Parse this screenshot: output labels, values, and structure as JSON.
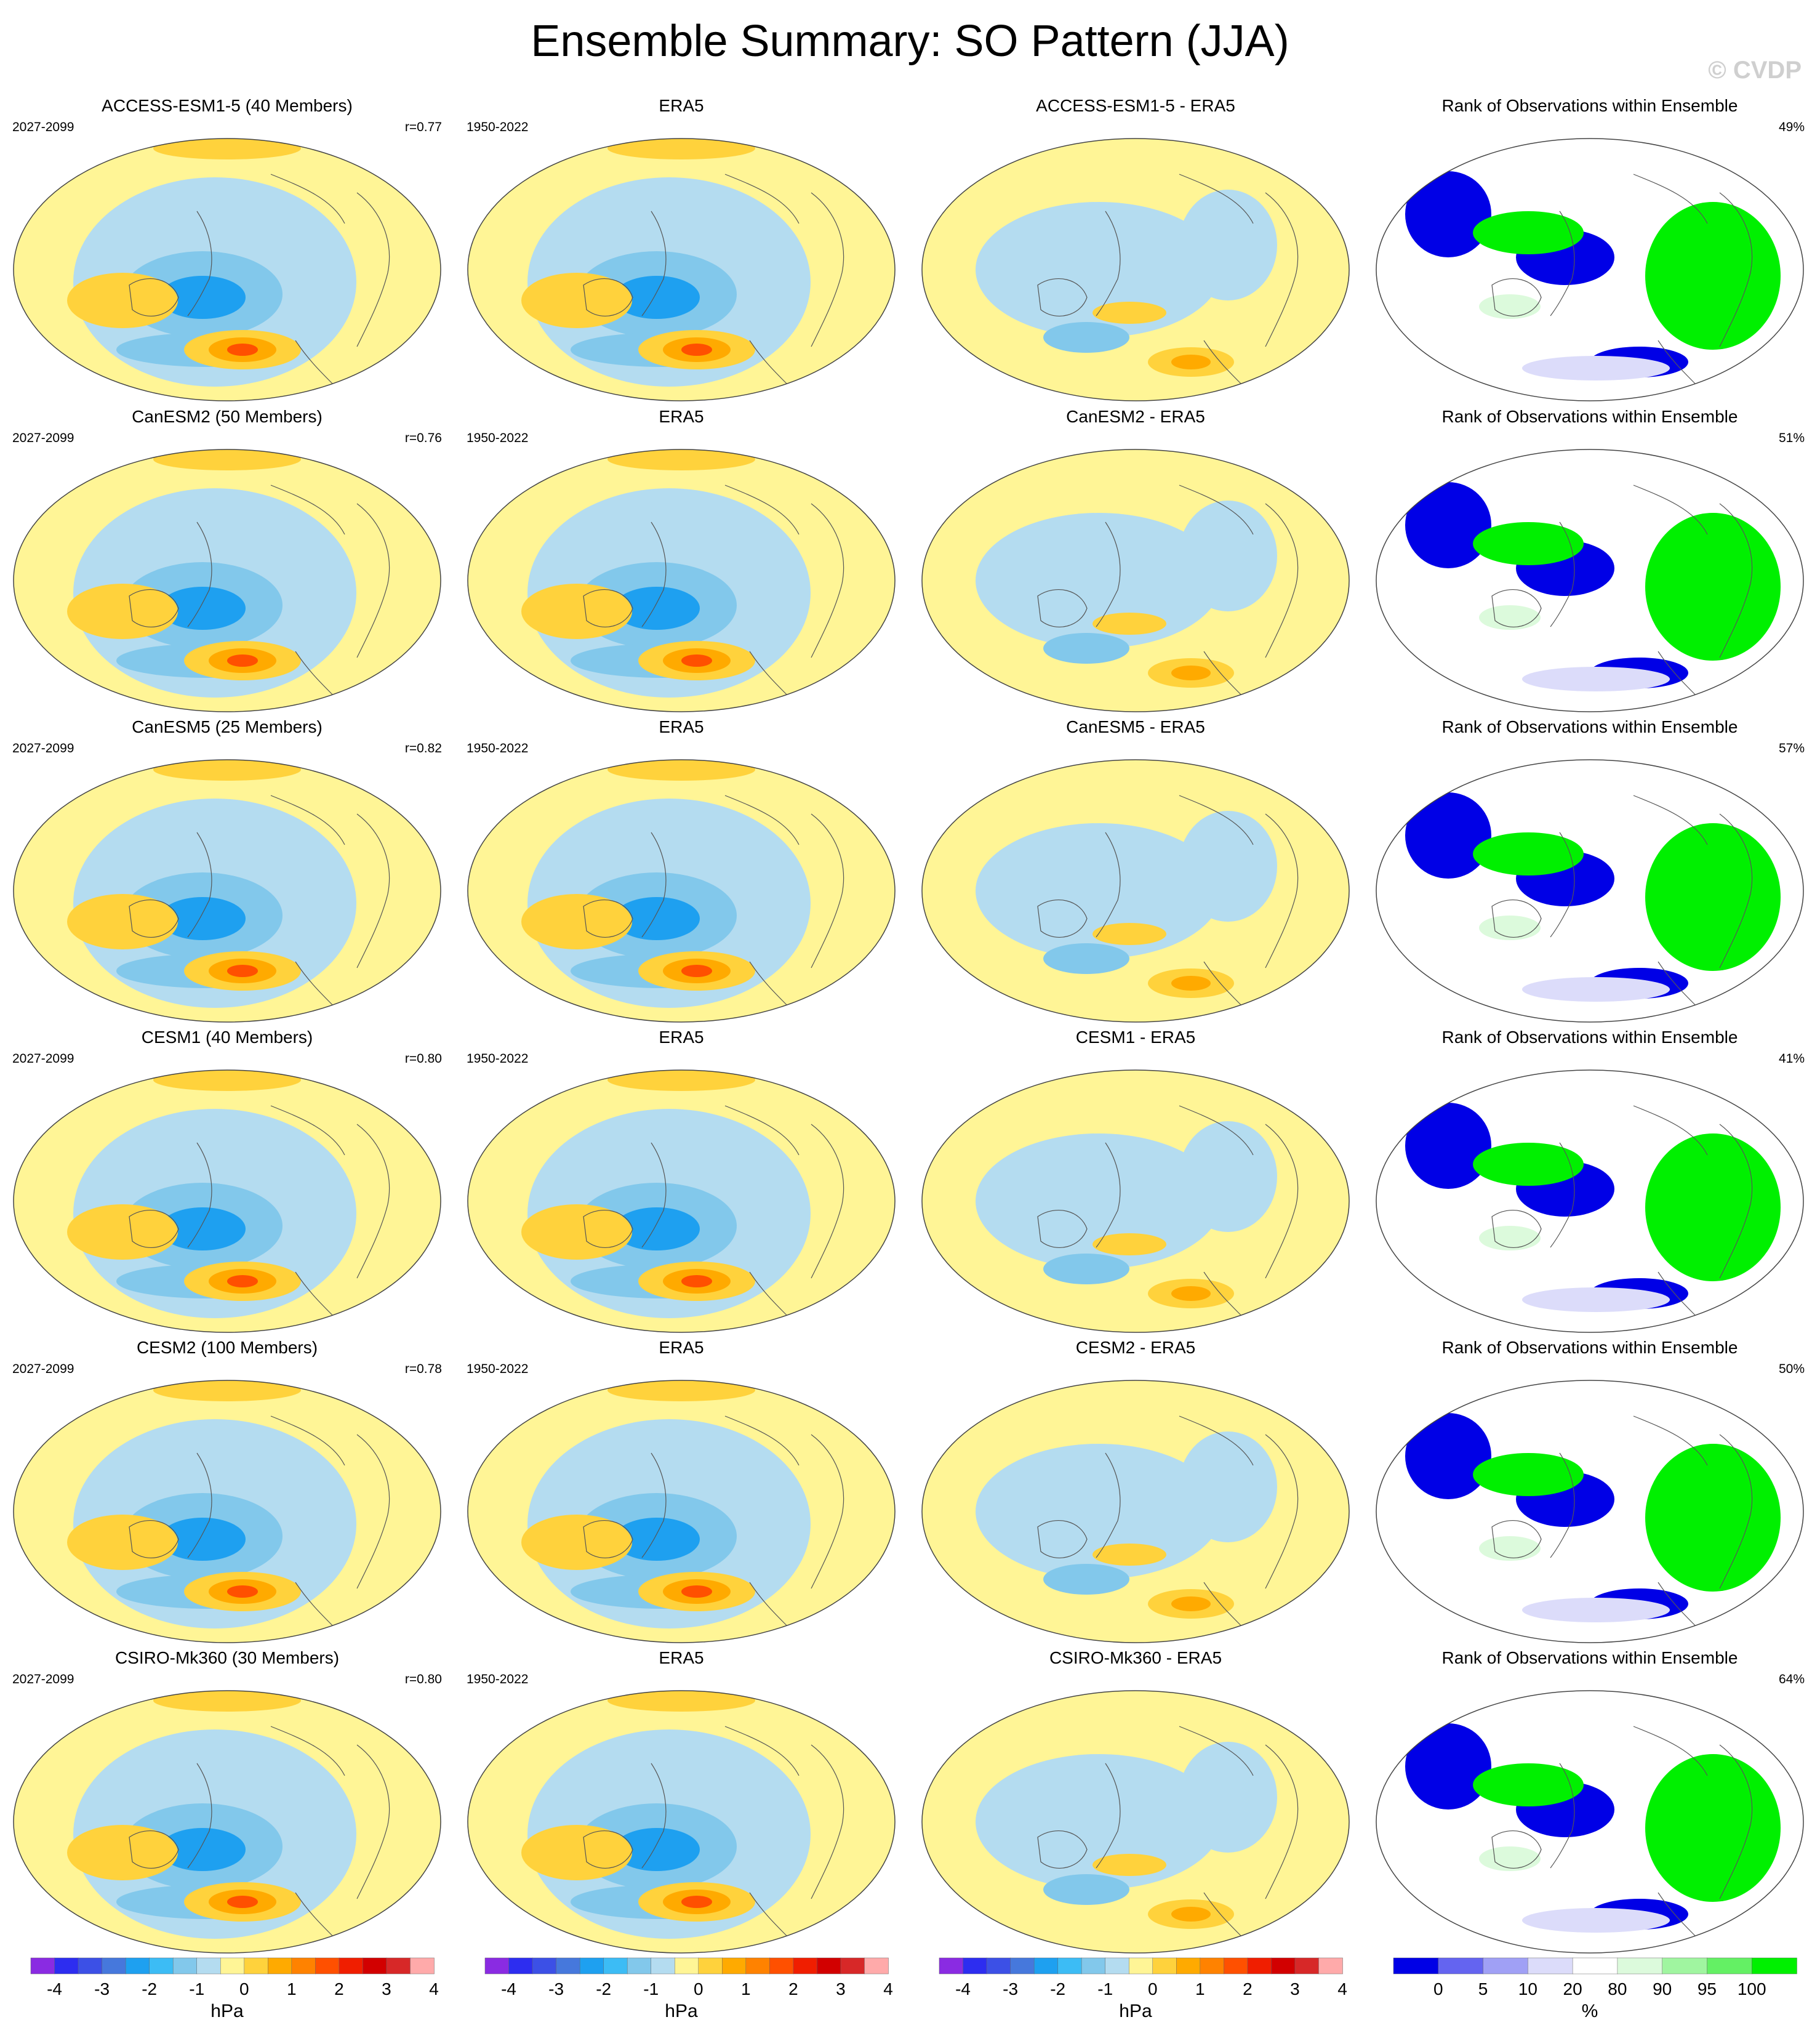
{
  "title": "Ensemble Summary: SO Pattern (JJA)",
  "copyright": "© CVDP",
  "rows": [
    {
      "model_title": "ACCESS-ESM1-5 (40 Members)",
      "model_period": "2027-2099",
      "r": "r=0.77",
      "obs_title": "ERA5",
      "obs_period": "1950-2022",
      "diff_title": "ACCESS-ESM1-5 - ERA5",
      "rank_title": "Rank of Observations within Ensemble",
      "rank_pct": "49%"
    },
    {
      "model_title": "CanESM2 (50 Members)",
      "model_period": "2027-2099",
      "r": "r=0.76",
      "obs_title": "ERA5",
      "obs_period": "1950-2022",
      "diff_title": "CanESM2 - ERA5",
      "rank_title": "Rank of Observations within Ensemble",
      "rank_pct": "51%"
    },
    {
      "model_title": "CanESM5 (25 Members)",
      "model_period": "2027-2099",
      "r": "r=0.82",
      "obs_title": "ERA5",
      "obs_period": "1950-2022",
      "diff_title": "CanESM5 - ERA5",
      "rank_title": "Rank of Observations within Ensemble",
      "rank_pct": "57%"
    },
    {
      "model_title": "CESM1 (40 Members)",
      "model_period": "2027-2099",
      "r": "r=0.80",
      "obs_title": "ERA5",
      "obs_period": "1950-2022",
      "diff_title": "CESM1 - ERA5",
      "rank_title": "Rank of Observations within Ensemble",
      "rank_pct": "41%"
    },
    {
      "model_title": "CESM2 (100 Members)",
      "model_period": "2027-2099",
      "r": "r=0.78",
      "obs_title": "ERA5",
      "obs_period": "1950-2022",
      "diff_title": "CESM2 - ERA5",
      "rank_title": "Rank of Observations within Ensemble",
      "rank_pct": "50%"
    },
    {
      "model_title": "CSIRO-Mk360 (30 Members)",
      "model_period": "2027-2099",
      "r": "r=0.80",
      "obs_title": "ERA5",
      "obs_period": "1950-2022",
      "diff_title": "CSIRO-Mk360 - ERA5",
      "rank_title": "Rank of Observations within Ensemble",
      "rank_pct": "64%"
    }
  ],
  "chart_data": {
    "type": "heatmap",
    "projection": "robinson-like global maps",
    "hpa_colorbar": {
      "ticks": [
        "-4",
        "-3",
        "-2",
        "-1",
        "0",
        "1",
        "2",
        "3",
        "4"
      ],
      "unit": "hPa",
      "colors": [
        "#8a2be2",
        "#2d2df0",
        "#3c50e6",
        "#4678dc",
        "#1ea0f0",
        "#3cbcf5",
        "#82c8eb",
        "#b4dcf0",
        "#fff596",
        "#ffd23c",
        "#ffaa00",
        "#ff8200",
        "#ff5000",
        "#f01e00",
        "#d20000",
        "#d72828",
        "#ffaaaa"
      ]
    },
    "rank_colorbar": {
      "ticks": [
        "0",
        "5",
        "10",
        "20",
        "80",
        "90",
        "95",
        "100"
      ],
      "unit": "%",
      "colors": [
        "#0000e6",
        "#6464f0",
        "#a0a0f5",
        "#dcdcfa",
        "#ffffff",
        "#dcfadc",
        "#a0f5a0",
        "#64f064",
        "#00f000"
      ]
    },
    "field_colors": {
      "dark_blue": "#1ea0f0",
      "mid_blue": "#82c8eb",
      "light_blue": "#b4dcf0",
      "yellow": "#fff596",
      "gold": "#ffd23c",
      "orange": "#ffaa00",
      "dark_orange": "#ff5000",
      "rank_low": "#0000e6",
      "rank_high": "#00f000",
      "rank_pale_blue": "#dcdcfa",
      "rank_pale_green": "#dcfadc"
    }
  }
}
